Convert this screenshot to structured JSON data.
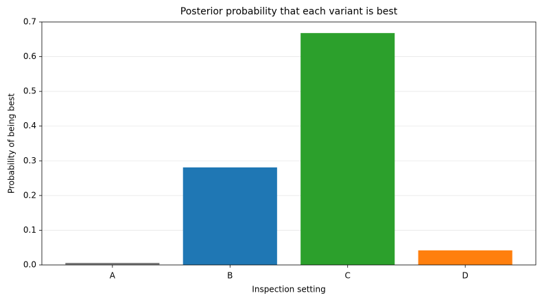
{
  "chart_data": {
    "type": "bar",
    "title": "Posterior probability that each variant is best",
    "x_label": "Inspection setting",
    "y_label": "Probability of being best",
    "categories": [
      "A",
      "B",
      "C",
      "D"
    ],
    "values": [
      0.006,
      0.281,
      0.668,
      0.042
    ],
    "colors": [
      "#7f7f7f",
      "#1f77b4",
      "#2ca02c",
      "#ff7f0e"
    ],
    "ylim": [
      0,
      0.7
    ],
    "yticks": [
      {
        "value": 0,
        "label": "0.0"
      },
      0.1,
      0.2,
      0.3,
      0.4,
      0.5,
      0.6,
      0.7
    ],
    "grid": true
  }
}
